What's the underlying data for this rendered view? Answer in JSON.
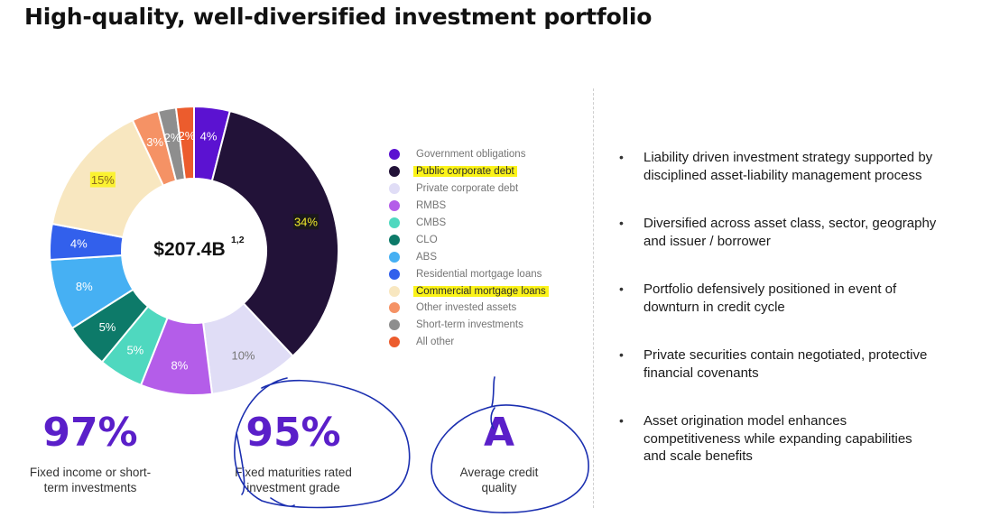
{
  "title": "High-quality, well-diversified investment portfolio",
  "chart_data": {
    "type": "pie",
    "center_label": "$207.4B",
    "center_superscript": "1,2",
    "categories": [
      "Government obligations",
      "Public corporate debt",
      "Private corporate debt",
      "RMBS",
      "CMBS",
      "CLO",
      "ABS",
      "Residential mortgage loans",
      "Commercial mortgage loans",
      "Other invested assets",
      "Short-term investments",
      "All other"
    ],
    "values": [
      4,
      34,
      10,
      8,
      5,
      5,
      8,
      4,
      15,
      3,
      2,
      2
    ],
    "data_labels": [
      "4%",
      "34%",
      "10%",
      "8%",
      "5%",
      "5%",
      "8%",
      "4%",
      "15%",
      "3%",
      "2%",
      "2%"
    ],
    "colors": [
      "#5b12d1",
      "#221238",
      "#e0ddf6",
      "#b45de9",
      "#4fd8bf",
      "#0d7a69",
      "#46b0f3",
      "#3260ec",
      "#f8e7c0",
      "#f59265",
      "#8e8e8e",
      "#ec5c2d"
    ],
    "highlighted": [
      "Public corporate debt",
      "Commercial mortgage loans",
      "34%",
      "15%"
    ],
    "legend_position": "right"
  },
  "stats": [
    {
      "value": "97%",
      "label_line1": "Fixed income or short-",
      "label_line2": "term investments"
    },
    {
      "value": "95%",
      "label_line1": "Fixed maturities rated",
      "label_line2": "investment grade"
    },
    {
      "value": "A",
      "label_line1": "Average credit",
      "label_line2": "quality"
    }
  ],
  "bullets": [
    {
      "line1": "Liability driven investment strategy supported by",
      "line2": "disciplined asset-liability management process"
    },
    {
      "line1": "Diversified across asset class, sector, geography",
      "line2": "and issuer / borrower"
    },
    {
      "line1": "Portfolio defensively positioned in event of",
      "line2": "downturn in credit cycle"
    },
    {
      "line1": "Private securities contain negotiated, protective",
      "line2": "financial covenants"
    },
    {
      "line1": "Asset origination model enhances",
      "line2": "competitiveness while expanding capabilities",
      "line3": "and scale benefits"
    }
  ],
  "bullet_glyph": "•",
  "colors": {
    "stat_accent": "#5a1fc9",
    "highlight": "#fbf318",
    "ink": "#1b2fb0"
  }
}
